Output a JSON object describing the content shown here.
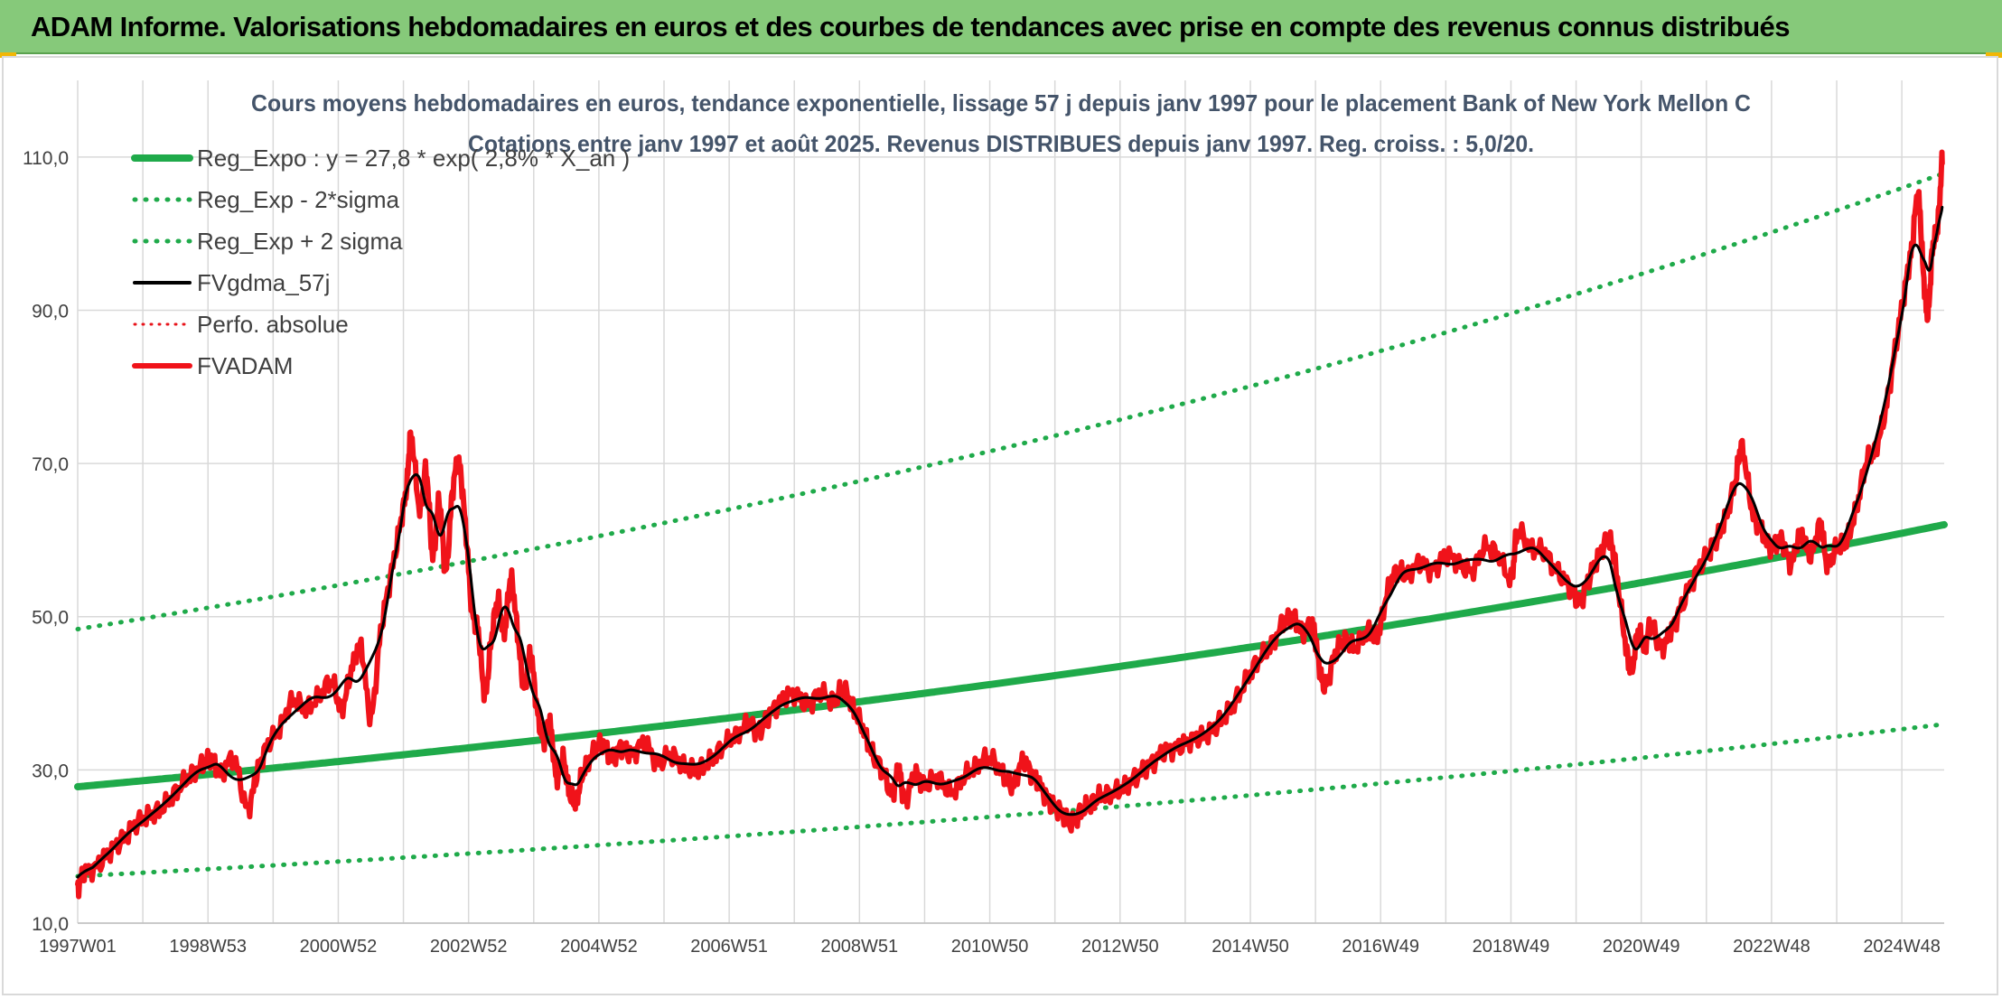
{
  "header": {
    "title": "ADAM Informe. Valorisations hebdomadaires en euros et des courbes de tendances avec prise en compte des revenus connus distribués"
  },
  "chart_data": {
    "type": "line",
    "title_lines": [
      "Cours moyens hebdomadaires en euros, tendance exponentielle, lissage 57 j depuis janv 1997 pour le placement Bank of New York Mellon C",
      "Cotations entre janv 1997 et août 2025. Revenus DISTRIBUES depuis janv 1997. Reg. croiss. : 5,0/20."
    ],
    "xlabel": "",
    "ylabel": "",
    "x_range": [
      1997.0,
      2025.65
    ],
    "ylim": [
      10,
      120
    ],
    "y_ticks": [
      10,
      30,
      50,
      70,
      90,
      110
    ],
    "y_tick_labels": [
      "10,0",
      "30,0",
      "50,0",
      "70,0",
      "90,0",
      "110,0"
    ],
    "x_ticks": [
      {
        "x": 1997.0,
        "label": "1997W01"
      },
      {
        "x": 1999.0,
        "label": "1998W53"
      },
      {
        "x": 2001.0,
        "label": "2000W52"
      },
      {
        "x": 2003.0,
        "label": "2002W52"
      },
      {
        "x": 2005.0,
        "label": "2004W52"
      },
      {
        "x": 2007.0,
        "label": "2006W51"
      },
      {
        "x": 2009.0,
        "label": "2008W51"
      },
      {
        "x": 2011.0,
        "label": "2010W50"
      },
      {
        "x": 2013.0,
        "label": "2012W50"
      },
      {
        "x": 2015.0,
        "label": "2014W50"
      },
      {
        "x": 2017.0,
        "label": "2016W49"
      },
      {
        "x": 2019.0,
        "label": "2018W49"
      },
      {
        "x": 2021.0,
        "label": "2020W49"
      },
      {
        "x": 2023.0,
        "label": "2022W48"
      },
      {
        "x": 2025.0,
        "label": "2024W48"
      }
    ],
    "grid": "vertical-and-horizontal",
    "legend_position": "top-left",
    "regression": {
      "a": 27.8,
      "rate": 0.028,
      "sigma_factor_low": 0.58,
      "sigma_factor_high": 1.74
    },
    "series": [
      {
        "name": "Reg_Expo : y = 27,8 * exp( 2,8% *  X_an )",
        "color": "#1faa4a",
        "style": "solid",
        "width": 8,
        "kind": "reg"
      },
      {
        "name": "Reg_Exp - 2*sigma",
        "color": "#1faa4a",
        "style": "dotted",
        "width": 5,
        "kind": "reg_low"
      },
      {
        "name": "Reg_Exp + 2 sigma",
        "color": "#1faa4a",
        "style": "dotted",
        "width": 5,
        "kind": "reg_high"
      },
      {
        "name": "FVgdma_57j",
        "color": "#000000",
        "style": "solid",
        "width": 4,
        "kind": "smooth"
      },
      {
        "name": "Perfo. absolue",
        "color": "#e8141b",
        "style": "dotted",
        "width": 3,
        "kind": "none"
      },
      {
        "name": "FVADAM",
        "color": "#f0131a",
        "style": "solid",
        "width": 6,
        "kind": "price"
      }
    ],
    "price_points": [
      [
        1997.0,
        14.5
      ],
      [
        1997.1,
        16.5
      ],
      [
        1997.3,
        17.5
      ],
      [
        1997.5,
        19.5
      ],
      [
        1997.7,
        21.0
      ],
      [
        1997.9,
        23.0
      ],
      [
        1998.1,
        24.0
      ],
      [
        1998.3,
        25.0
      ],
      [
        1998.5,
        27.0
      ],
      [
        1998.7,
        29.0
      ],
      [
        1998.9,
        30.5
      ],
      [
        1999.05,
        31.5
      ],
      [
        1999.2,
        29.5
      ],
      [
        1999.4,
        31.5
      ],
      [
        1999.6,
        25.0
      ],
      [
        1999.75,
        29.5
      ],
      [
        1999.9,
        33.0
      ],
      [
        2000.1,
        35.5
      ],
      [
        2000.3,
        39.0
      ],
      [
        2000.5,
        38.0
      ],
      [
        2000.7,
        39.5
      ],
      [
        2000.9,
        41.5
      ],
      [
        2001.05,
        38.0
      ],
      [
        2001.2,
        43.0
      ],
      [
        2001.35,
        46.0
      ],
      [
        2001.5,
        37.0
      ],
      [
        2001.65,
        48.0
      ],
      [
        2001.8,
        55.0
      ],
      [
        2001.95,
        62.0
      ],
      [
        2002.05,
        67.0
      ],
      [
        2002.12,
        73.5
      ],
      [
        2002.25,
        64.0
      ],
      [
        2002.35,
        69.0
      ],
      [
        2002.45,
        58.0
      ],
      [
        2002.55,
        65.0
      ],
      [
        2002.65,
        56.0
      ],
      [
        2002.75,
        66.0
      ],
      [
        2002.85,
        70.0
      ],
      [
        2002.95,
        62.0
      ],
      [
        2003.05,
        51.0
      ],
      [
        2003.15,
        48.0
      ],
      [
        2003.25,
        40.0
      ],
      [
        2003.35,
        47.0
      ],
      [
        2003.45,
        52.0
      ],
      [
        2003.55,
        48.0
      ],
      [
        2003.65,
        55.0
      ],
      [
        2003.75,
        48.0
      ],
      [
        2003.85,
        41.0
      ],
      [
        2003.95,
        45.0
      ],
      [
        2004.05,
        38.0
      ],
      [
        2004.15,
        34.0
      ],
      [
        2004.25,
        36.0
      ],
      [
        2004.35,
        29.0
      ],
      [
        2004.45,
        31.5
      ],
      [
        2004.55,
        27.0
      ],
      [
        2004.65,
        26.0
      ],
      [
        2004.75,
        29.5
      ],
      [
        2004.9,
        32.0
      ],
      [
        2005.05,
        33.5
      ],
      [
        2005.2,
        31.5
      ],
      [
        2005.35,
        33.0
      ],
      [
        2005.5,
        32.0
      ],
      [
        2005.7,
        33.5
      ],
      [
        2005.9,
        31.0
      ],
      [
        2006.1,
        32.0
      ],
      [
        2006.3,
        30.5
      ],
      [
        2006.5,
        30.0
      ],
      [
        2006.7,
        31.0
      ],
      [
        2006.9,
        33.0
      ],
      [
        2007.1,
        34.5
      ],
      [
        2007.3,
        36.0
      ],
      [
        2007.45,
        35.0
      ],
      [
        2007.6,
        37.0
      ],
      [
        2007.8,
        39.0
      ],
      [
        2008.0,
        40.0
      ],
      [
        2008.2,
        38.5
      ],
      [
        2008.4,
        40.0
      ],
      [
        2008.6,
        39.0
      ],
      [
        2008.75,
        40.5
      ],
      [
        2008.9,
        38.0
      ],
      [
        2009.05,
        35.5
      ],
      [
        2009.2,
        32.0
      ],
      [
        2009.35,
        30.0
      ],
      [
        2009.5,
        27.0
      ],
      [
        2009.6,
        30.0
      ],
      [
        2009.7,
        26.0
      ],
      [
        2009.85,
        29.5
      ],
      [
        2010.0,
        28.0
      ],
      [
        2010.2,
        29.0
      ],
      [
        2010.4,
        27.0
      ],
      [
        2010.6,
        29.0
      ],
      [
        2010.8,
        30.5
      ],
      [
        2011.0,
        31.5
      ],
      [
        2011.2,
        29.5
      ],
      [
        2011.35,
        28.0
      ],
      [
        2011.5,
        31.0
      ],
      [
        2011.65,
        29.5
      ],
      [
        2011.8,
        27.5
      ],
      [
        2011.95,
        25.5
      ],
      [
        2012.1,
        24.5
      ],
      [
        2012.25,
        23.0
      ],
      [
        2012.4,
        24.5
      ],
      [
        2012.55,
        25.5
      ],
      [
        2012.7,
        26.5
      ],
      [
        2012.9,
        27.0
      ],
      [
        2013.1,
        28.0
      ],
      [
        2013.3,
        29.5
      ],
      [
        2013.5,
        31.0
      ],
      [
        2013.7,
        32.5
      ],
      [
        2013.9,
        33.0
      ],
      [
        2014.1,
        34.0
      ],
      [
        2014.3,
        34.5
      ],
      [
        2014.5,
        36.0
      ],
      [
        2014.7,
        38.0
      ],
      [
        2014.9,
        41.0
      ],
      [
        2015.1,
        44.0
      ],
      [
        2015.3,
        46.0
      ],
      [
        2015.5,
        49.0
      ],
      [
        2015.65,
        50.0
      ],
      [
        2015.8,
        48.0
      ],
      [
        2015.95,
        49.0
      ],
      [
        2016.05,
        44.0
      ],
      [
        2016.15,
        41.0
      ],
      [
        2016.3,
        45.0
      ],
      [
        2016.45,
        47.0
      ],
      [
        2016.6,
        46.0
      ],
      [
        2016.8,
        48.0
      ],
      [
        2016.95,
        47.5
      ],
      [
        2017.1,
        53.0
      ],
      [
        2017.25,
        56.0
      ],
      [
        2017.4,
        55.5
      ],
      [
        2017.6,
        57.0
      ],
      [
        2017.8,
        56.0
      ],
      [
        2018.0,
        58.0
      ],
      [
        2018.2,
        57.0
      ],
      [
        2018.4,
        56.0
      ],
      [
        2018.6,
        59.0
      ],
      [
        2018.8,
        58.0
      ],
      [
        2019.0,
        55.0
      ],
      [
        2019.1,
        61.0
      ],
      [
        2019.3,
        59.0
      ],
      [
        2019.5,
        58.5
      ],
      [
        2019.7,
        56.0
      ],
      [
        2019.9,
        54.0
      ],
      [
        2020.05,
        52.0
      ],
      [
        2020.2,
        55.0
      ],
      [
        2020.35,
        58.0
      ],
      [
        2020.5,
        60.0
      ],
      [
        2020.6,
        57.0
      ],
      [
        2020.75,
        47.0
      ],
      [
        2020.85,
        43.0
      ],
      [
        2020.95,
        48.0
      ],
      [
        2021.05,
        46.0
      ],
      [
        2021.15,
        49.0
      ],
      [
        2021.3,
        46.0
      ],
      [
        2021.45,
        48.0
      ],
      [
        2021.6,
        51.0
      ],
      [
        2021.8,
        55.0
      ],
      [
        2022.0,
        58.0
      ],
      [
        2022.15,
        60.0
      ],
      [
        2022.3,
        63.0
      ],
      [
        2022.45,
        68.0
      ],
      [
        2022.55,
        72.0
      ],
      [
        2022.7,
        64.0
      ],
      [
        2022.85,
        61.0
      ],
      [
        2023.0,
        59.0
      ],
      [
        2023.15,
        60.0
      ],
      [
        2023.3,
        57.0
      ],
      [
        2023.45,
        61.0
      ],
      [
        2023.6,
        58.0
      ],
      [
        2023.75,
        62.0
      ],
      [
        2023.85,
        57.0
      ],
      [
        2024.0,
        59.0
      ],
      [
        2024.15,
        60.0
      ],
      [
        2024.3,
        64.0
      ],
      [
        2024.45,
        70.0
      ],
      [
        2024.6,
        72.0
      ],
      [
        2024.75,
        77.0
      ],
      [
        2024.9,
        85.0
      ],
      [
        2025.05,
        93.0
      ],
      [
        2025.15,
        98.0
      ],
      [
        2025.25,
        105.0
      ],
      [
        2025.33,
        95.0
      ],
      [
        2025.4,
        89.5
      ],
      [
        2025.47,
        98.0
      ],
      [
        2025.55,
        101.0
      ],
      [
        2025.62,
        110.0
      ]
    ]
  }
}
